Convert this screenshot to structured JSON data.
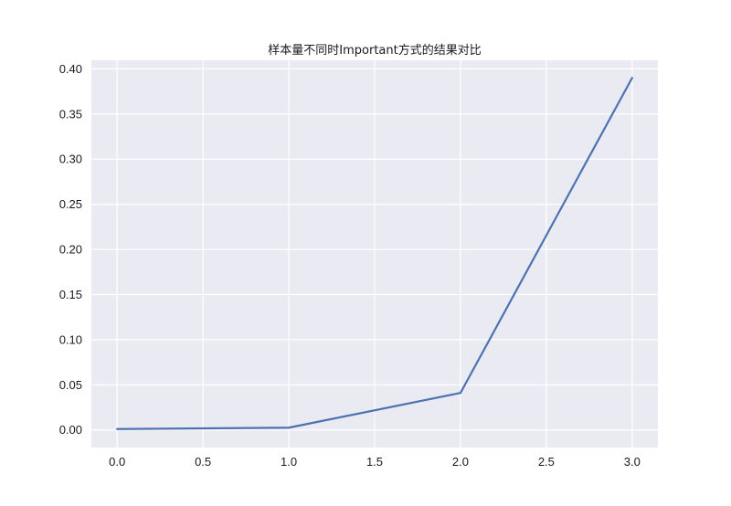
{
  "chart_data": {
    "type": "line",
    "title": "样本量不同时Important方式的结果对比",
    "xlabel": "",
    "ylabel": "",
    "x": [
      0,
      1,
      2,
      3
    ],
    "series": [
      {
        "values": [
          0.001,
          0.0025,
          0.041,
          0.39
        ]
      }
    ],
    "xlim": [
      -0.15,
      3.15
    ],
    "ylim": [
      -0.0195,
      0.4095
    ],
    "xticks": [
      0.0,
      0.5,
      1.0,
      1.5,
      2.0,
      2.5,
      3.0
    ],
    "xtick_labels": [
      "0.0",
      "0.5",
      "1.0",
      "1.5",
      "2.0",
      "2.5",
      "3.0"
    ],
    "yticks": [
      0.0,
      0.05,
      0.1,
      0.15,
      0.2,
      0.25,
      0.3,
      0.35,
      0.4
    ],
    "ytick_labels": [
      "0.00",
      "0.05",
      "0.10",
      "0.15",
      "0.20",
      "0.25",
      "0.30",
      "0.35",
      "0.40"
    ],
    "grid": true,
    "legend": false,
    "colors": {
      "plot_background": "#eaeaf2",
      "grid": "#ffffff",
      "line": "#4c72b0",
      "text": "#1a1a1a"
    }
  }
}
